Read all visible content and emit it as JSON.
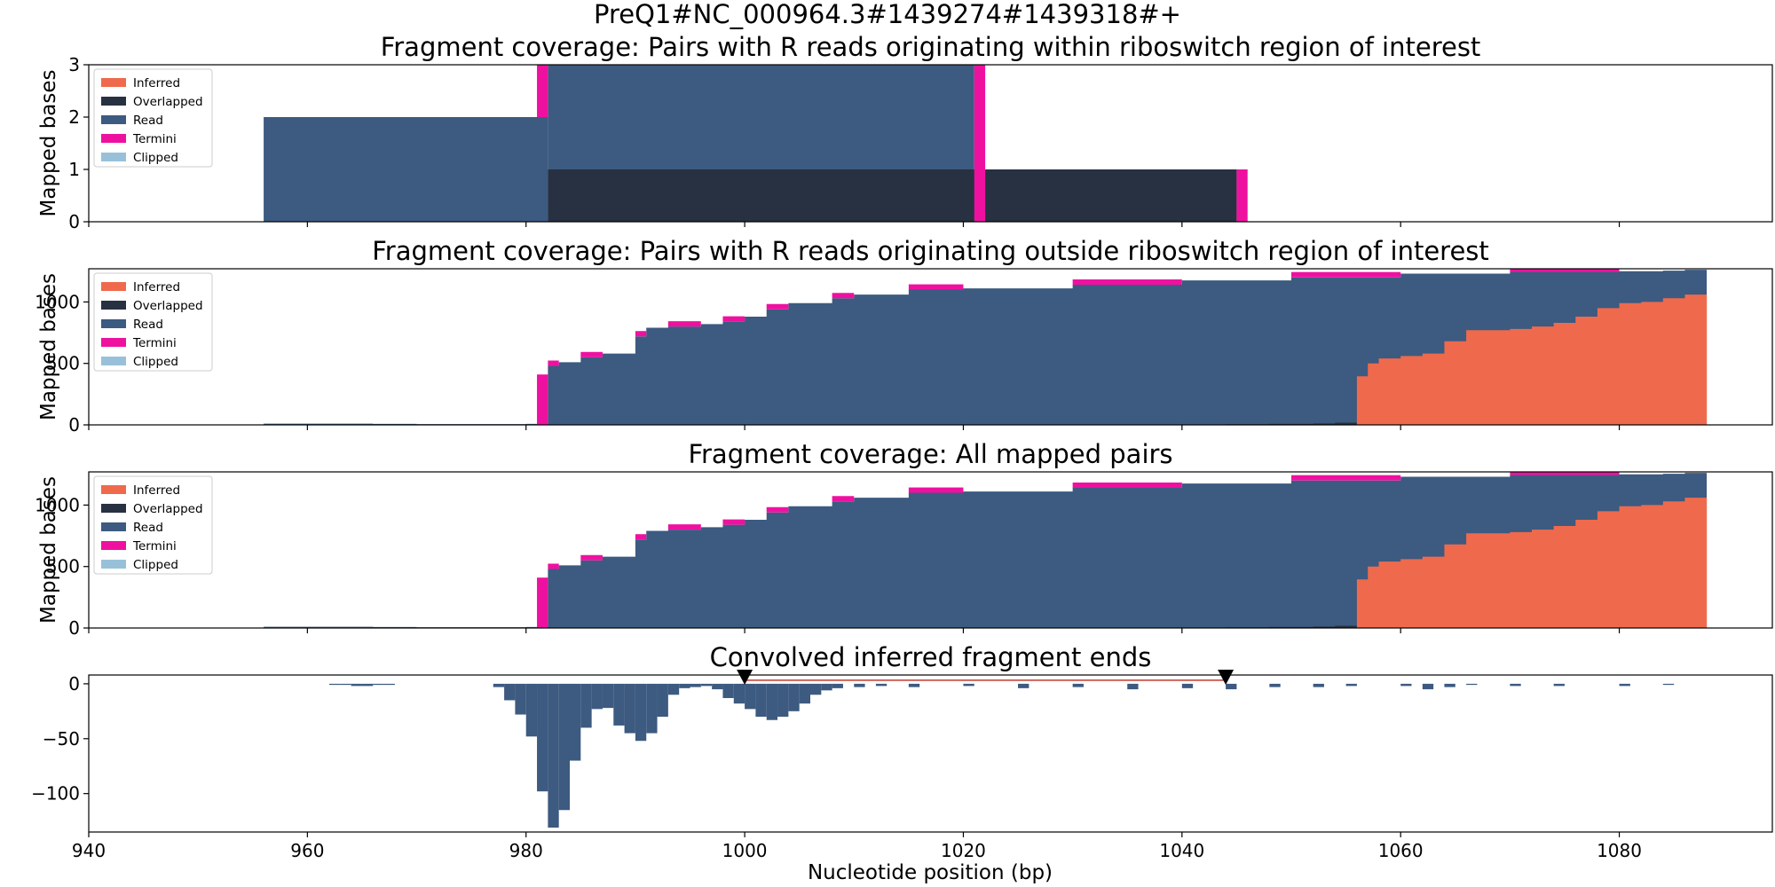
{
  "suptitle": "PreQ1#NC_000964.3#1439274#1439318#+",
  "colors": {
    "inferred": "#ef6a4c",
    "overlapped": "#283142",
    "read": "#3d5a80",
    "termini": "#ee11a0",
    "clipped": "#98c1d9",
    "ends_bar": "#3d5a80",
    "marker": "#000000",
    "region_line": "#c0392b"
  },
  "legend_entries": [
    "Inferred",
    "Overlapped",
    "Read",
    "Termini",
    "Clipped"
  ],
  "x_axis": {
    "label": "Nucleotide position (bp)",
    "range": [
      940,
      1094
    ],
    "ticks": [
      940,
      960,
      980,
      1000,
      1020,
      1040,
      1060,
      1080
    ]
  },
  "chart_data": [
    {
      "type": "area",
      "title": "Fragment coverage: Pairs with R reads originating within riboswitch region of interest",
      "ylabel": "Mapped bases",
      "ylim": [
        0,
        3
      ],
      "yticks": [
        0,
        1,
        2,
        3
      ],
      "legend": "top-left",
      "layers": [
        {
          "series": "Read",
          "segments": [
            [
              956,
              982,
              0,
              2
            ],
            [
              982,
              1021,
              0,
              3
            ]
          ]
        },
        {
          "series": "Overlapped",
          "segments": [
            [
              982,
              1045,
              0,
              1
            ]
          ]
        },
        {
          "series": "Termini",
          "segments": [
            [
              981,
              982,
              2,
              3
            ],
            [
              1021,
              1022,
              0,
              3
            ],
            [
              1045,
              1046,
              0,
              1
            ]
          ]
        }
      ]
    },
    {
      "type": "area",
      "title": "Fragment coverage: Pairs with R reads originating outside riboswitch region of interest",
      "ylabel": "Mapped bases",
      "ylim": [
        0,
        1270
      ],
      "yticks": [
        0,
        500,
        1000
      ],
      "legend": "top-left",
      "read_x": [
        956,
        960,
        966,
        970,
        976,
        980,
        981,
        982,
        983,
        985,
        987,
        990,
        991,
        993,
        996,
        998,
        1000,
        1002,
        1004,
        1008,
        1010,
        1015,
        1020,
        1030,
        1040,
        1050,
        1060,
        1070,
        1080,
        1084,
        1086,
        1088
      ],
      "read_y": [
        10,
        10,
        8,
        6,
        6,
        8,
        10,
        480,
        510,
        550,
        580,
        720,
        790,
        800,
        820,
        840,
        880,
        940,
        990,
        1030,
        1060,
        1100,
        1110,
        1140,
        1175,
        1200,
        1230,
        1245,
        1250,
        1255,
        1262,
        1262
      ],
      "termini_x": [
        981,
        982
      ],
      "termini_y": [
        410,
        0
      ],
      "inferred_x": [
        1056,
        1057,
        1058,
        1060,
        1062,
        1064,
        1066,
        1068,
        1070,
        1072,
        1074,
        1076,
        1078,
        1080,
        1082,
        1084,
        1086,
        1088
      ],
      "inferred_y": [
        395,
        500,
        540,
        560,
        580,
        680,
        770,
        770,
        780,
        800,
        830,
        880,
        950,
        990,
        1000,
        1030,
        1060,
        1070
      ],
      "overlapped_x": [
        1044,
        1048,
        1052,
        1054,
        1056
      ],
      "overlapped_y": [
        5,
        8,
        12,
        18,
        0
      ]
    },
    {
      "type": "area",
      "title": "Fragment coverage: All mapped pairs",
      "ylabel": "Mapped bases",
      "ylim": [
        0,
        1270
      ],
      "yticks": [
        0,
        500,
        1000
      ],
      "legend": "top-left",
      "read_x": [
        956,
        960,
        966,
        970,
        976,
        980,
        981,
        982,
        983,
        985,
        987,
        990,
        991,
        993,
        996,
        998,
        1000,
        1002,
        1004,
        1008,
        1010,
        1015,
        1020,
        1030,
        1040,
        1050,
        1060,
        1070,
        1080,
        1084,
        1086,
        1088
      ],
      "read_y": [
        10,
        10,
        8,
        6,
        6,
        8,
        10,
        480,
        510,
        550,
        580,
        720,
        790,
        800,
        820,
        840,
        880,
        940,
        990,
        1030,
        1060,
        1100,
        1110,
        1140,
        1175,
        1200,
        1230,
        1245,
        1250,
        1255,
        1262,
        1262
      ],
      "termini_x": [
        981,
        982
      ],
      "termini_y": [
        410,
        0
      ],
      "inferred_x": [
        1056,
        1057,
        1058,
        1060,
        1062,
        1064,
        1066,
        1068,
        1070,
        1072,
        1074,
        1076,
        1078,
        1080,
        1082,
        1084,
        1086,
        1088
      ],
      "inferred_y": [
        395,
        500,
        540,
        560,
        580,
        680,
        770,
        770,
        780,
        800,
        830,
        880,
        950,
        990,
        1000,
        1030,
        1060,
        1070
      ],
      "overlapped_x": [
        1044,
        1048,
        1052,
        1054,
        1056
      ],
      "overlapped_y": [
        5,
        8,
        12,
        18,
        0
      ]
    },
    {
      "type": "bar",
      "title": "Convolved inferred fragment ends",
      "ylim": [
        -135,
        8
      ],
      "yticks": [
        0,
        -50,
        -100
      ],
      "yticklabels": [
        "0",
        "−50",
        "−100"
      ],
      "x": [
        962,
        963,
        964,
        965,
        966,
        967,
        977,
        978,
        979,
        980,
        981,
        982,
        983,
        984,
        985,
        986,
        987,
        988,
        989,
        990,
        991,
        992,
        993,
        994,
        995,
        996,
        997,
        998,
        999,
        1000,
        1001,
        1002,
        1003,
        1004,
        1005,
        1006,
        1007,
        1008,
        1010,
        1012,
        1015,
        1020,
        1025,
        1030,
        1035,
        1040,
        1044,
        1048,
        1052,
        1055,
        1060,
        1062,
        1064,
        1066,
        1070,
        1074,
        1080,
        1084
      ],
      "values": [
        -1,
        -1,
        -2,
        -2,
        -1,
        -1,
        -3,
        -15,
        -28,
        -48,
        -98,
        -131,
        -115,
        -70,
        -40,
        -23,
        -22,
        -38,
        -45,
        -52,
        -45,
        -30,
        -10,
        -4,
        -3,
        -2,
        -5,
        -13,
        -18,
        -23,
        -30,
        -33,
        -30,
        -25,
        -18,
        -10,
        -6,
        -4,
        -3,
        -2,
        -3,
        -2,
        -4,
        -3,
        -5,
        -4,
        -5,
        -3,
        -3,
        -2,
        -2,
        -5,
        -3,
        -1,
        -2,
        -2,
        -2,
        -1
      ],
      "markers": [
        1000,
        1044
      ]
    }
  ]
}
